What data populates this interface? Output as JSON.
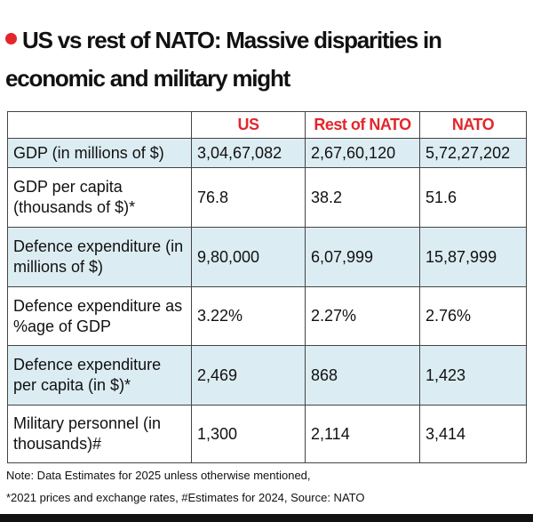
{
  "header": {
    "title": "US vs rest of NATO: Massive disparities in economic and military might"
  },
  "table": {
    "columns": [
      "",
      "US",
      "Rest of NATO",
      "NATO"
    ],
    "rows": [
      [
        "GDP (in millions of $)",
        "3,04,67,082",
        "2,67,60,120",
        "5,72,27,202"
      ],
      [
        "GDP per capita (thousands of $)*",
        "76.8",
        "38.2",
        "51.6"
      ],
      [
        "Defence expenditure (in millions of $)",
        "9,80,000",
        "6,07,999",
        "15,87,999"
      ],
      [
        "Defence expenditure as %age of GDP",
        "3.22%",
        "2.27%",
        "2.76%"
      ],
      [
        "Defence expenditure per capita (in $)*",
        "2,469",
        "868",
        "1,423"
      ],
      [
        "Military personnel (in thousands)#",
        "1,300",
        "2,114",
        "3,414"
      ]
    ]
  },
  "notes": [
    "Note: Data Estimates for 2025 unless otherwise mentioned,",
    "*2021 prices and exchange rates, #Estimates for 2024, Source: NATO"
  ]
}
